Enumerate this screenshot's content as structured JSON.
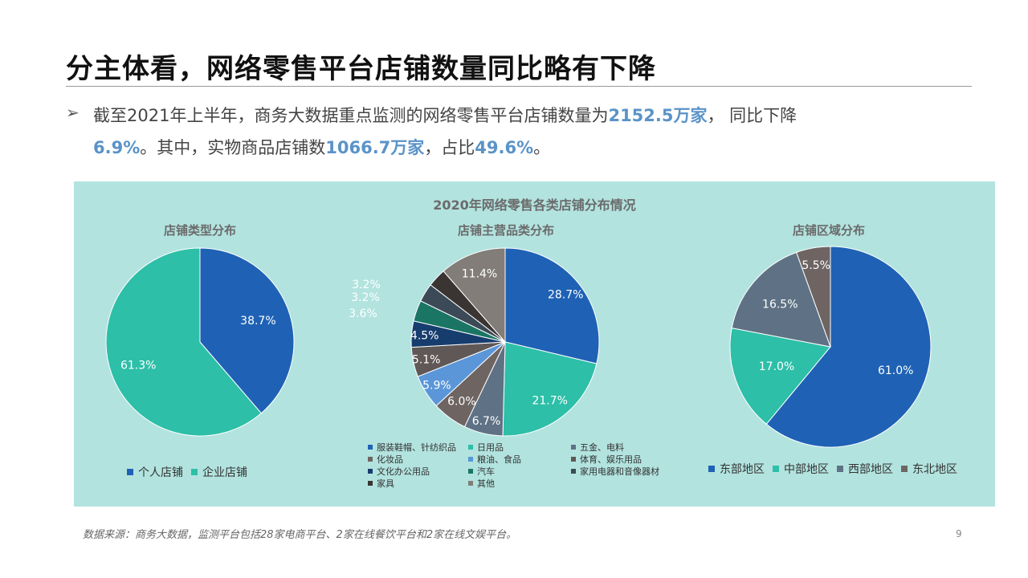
{
  "slide": {
    "title": "分主体看，网络零售平台店铺数量同比略有下降",
    "bullet_icon": "➢",
    "para_1": "截至2021年上半年，商务大数据重点监测的网络零售平台店铺数量为",
    "para_hl1": "2152.5万家",
    "para_2": "， 同比下降",
    "para_hl2": "6.9%",
    "para_3": "。其中，实物商品店铺数",
    "para_hl3": "1066.7万家",
    "para_4": "，占比",
    "para_hl4": "49.6%",
    "para_5": "。",
    "source": "数据来源：商务大数据，监测平台包括28家电商平台、2家在线餐饮平台和2家在线文娱平台。",
    "page_number": "9"
  },
  "panel_title": "2020年网络零售各类店铺分布情况",
  "chart_data": [
    {
      "type": "pie",
      "title": "店铺类型分布",
      "labels": [
        "个人店铺",
        "企业店铺"
      ],
      "values": [
        38.7,
        61.3
      ],
      "value_labels": [
        "38.7%",
        "61.3%"
      ],
      "colors": [
        "#1f62b5",
        "#2dbfa8"
      ],
      "legend": "bottom"
    },
    {
      "type": "pie",
      "title": "店铺主营品类分布",
      "labels": [
        "服装鞋帽、针纺织品",
        "日用品",
        "五金、电料",
        "化妆品",
        "粮油、食品",
        "体育、娱乐用品",
        "文化办公用品",
        "汽车",
        "家用电器和音像器材",
        "家具",
        "其他"
      ],
      "values": [
        28.7,
        21.7,
        6.7,
        6.0,
        5.9,
        5.1,
        4.5,
        3.6,
        3.2,
        3.2,
        11.4
      ],
      "value_labels": [
        "28.7%",
        "21.7%",
        "6.7%",
        "6.0%",
        "5.9%",
        "5.1%",
        "4.5%",
        "3.6%",
        "3.2%",
        "3.2%",
        "11.4%"
      ],
      "colors": [
        "#1f62b5",
        "#2dbfa8",
        "#5f7285",
        "#6e6563",
        "#5a96d8",
        "#5f5856",
        "#173d6e",
        "#1b7565",
        "#3c4a57",
        "#3a3533",
        "#827d78"
      ],
      "legend": "bottom"
    },
    {
      "type": "pie",
      "title": "店铺区域分布",
      "labels": [
        "东部地区",
        "中部地区",
        "西部地区",
        "东北地区"
      ],
      "values": [
        61.0,
        17.0,
        16.5,
        5.5
      ],
      "value_labels": [
        "61.0%",
        "17.0%",
        "16.5%",
        "5.5%"
      ],
      "colors": [
        "#1f62b5",
        "#2dbfa8",
        "#5f7285",
        "#6e6563"
      ],
      "legend": "bottom"
    }
  ]
}
